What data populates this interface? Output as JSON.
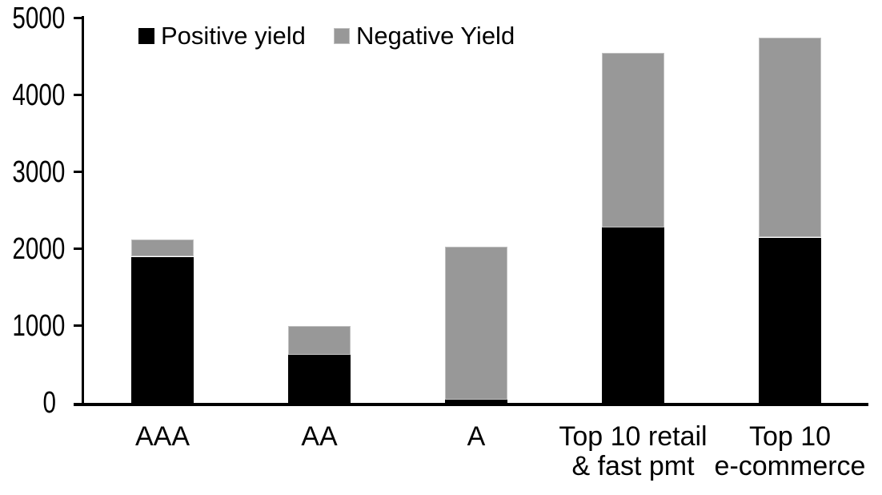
{
  "chart_data": {
    "type": "bar",
    "stacked": true,
    "categories": [
      "AAA",
      "AA",
      "A",
      "Top 10 retail\n& fast pmt",
      "Top 10\ne-commerce"
    ],
    "series": [
      {
        "name": "Positive yield",
        "color": "#000000",
        "values": [
          1900,
          620,
          45,
          2280,
          2150
        ]
      },
      {
        "name": "Negative Yield",
        "color": "#989898",
        "values": [
          220,
          380,
          1985,
          2270,
          2600
        ]
      }
    ],
    "title": "",
    "xlabel": "",
    "ylabel": "",
    "ylim": [
      0,
      5000
    ],
    "yticks": [
      0,
      1000,
      2000,
      3000,
      4000,
      5000
    ],
    "legend_position": "top",
    "grid": false,
    "colors": {
      "axis": "#000000",
      "background": "#ffffff",
      "segment_border": "#c0c0c0"
    }
  }
}
